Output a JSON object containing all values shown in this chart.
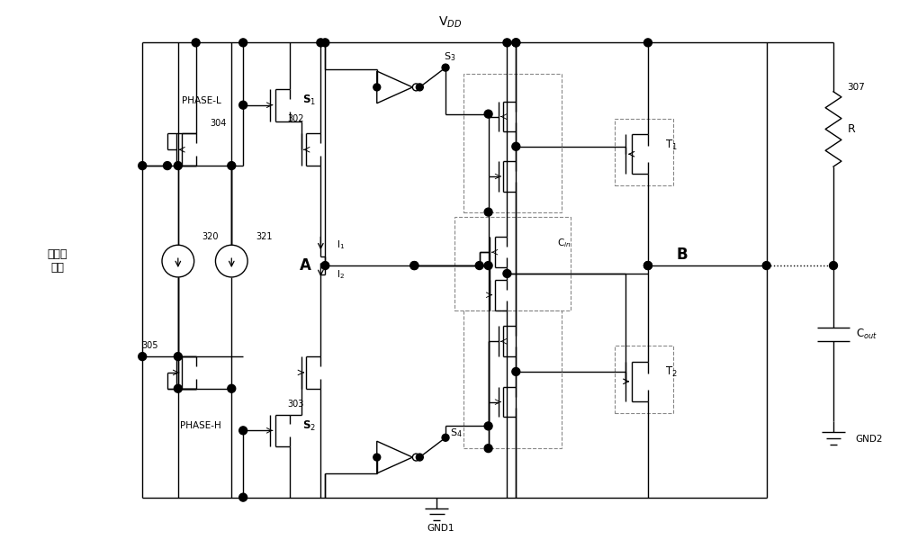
{
  "bg_color": "#ffffff",
  "line_color": "#000000",
  "fig_width": 10.0,
  "fig_height": 6.0,
  "vdd_label": "V$_{DD}$",
  "gnd1_label": "GND1",
  "gnd2_label": "GND2",
  "label_A": "A",
  "label_B": "B",
  "label_R": "R",
  "label_307": "307",
  "label_Cin": "C$_{in}$",
  "label_Cout": "C$_{out}$",
  "label_T1": "T$_{1}$",
  "label_T2": "T$_{2}$",
  "label_S1": "S$_{1}$",
  "label_S2": "S$_{2}$",
  "label_S3": "S$_{3}$",
  "label_S4": "S$_{4}$",
  "label_I1": "I$_{1}$",
  "label_I2": "I$_{2}$",
  "label_302": "302",
  "label_303": "303",
  "label_304": "304",
  "label_305": "305",
  "label_320": "320",
  "label_321": "321",
  "label_PHASE_L": "PHASE-L",
  "label_PHASE_H": "PHASE-H",
  "label_current_gen": "电流源\n产生"
}
